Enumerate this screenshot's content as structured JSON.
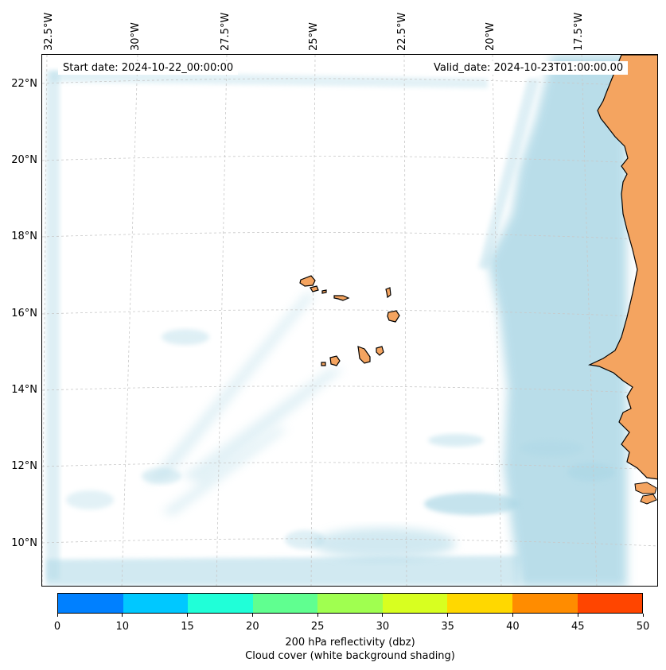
{
  "map": {
    "start_date": "Start date: 2024-10-22_00:00:00",
    "valid_date": "Valid_date: 2024-10-23T01:00:00.00",
    "longitude_labels": [
      "32.5°W",
      "30°W",
      "27.5°W",
      "25°W",
      "22.5°W",
      "20°W",
      "17.5°W"
    ],
    "latitude_labels": [
      "22°N",
      "20°N",
      "18°N",
      "16°N",
      "14°N",
      "12°N",
      "10°N"
    ],
    "colors": {
      "land": "#f4a460",
      "cloud": "#add8e6",
      "coastline": "#000000",
      "gridline": "#c8c8c8"
    }
  },
  "colorbar": {
    "ticks": [
      "0",
      "10",
      "15",
      "20",
      "25",
      "30",
      "35",
      "40",
      "45",
      "50"
    ],
    "colors": [
      "#0080ff",
      "#00c8ff",
      "#20ffd8",
      "#60ff90",
      "#a0ff50",
      "#d8ff20",
      "#ffd800",
      "#ff8c00",
      "#ff4500"
    ],
    "label_line1": "200 hPa reflectivity (dbz)",
    "label_line2": "Cloud cover (white background shading)"
  }
}
